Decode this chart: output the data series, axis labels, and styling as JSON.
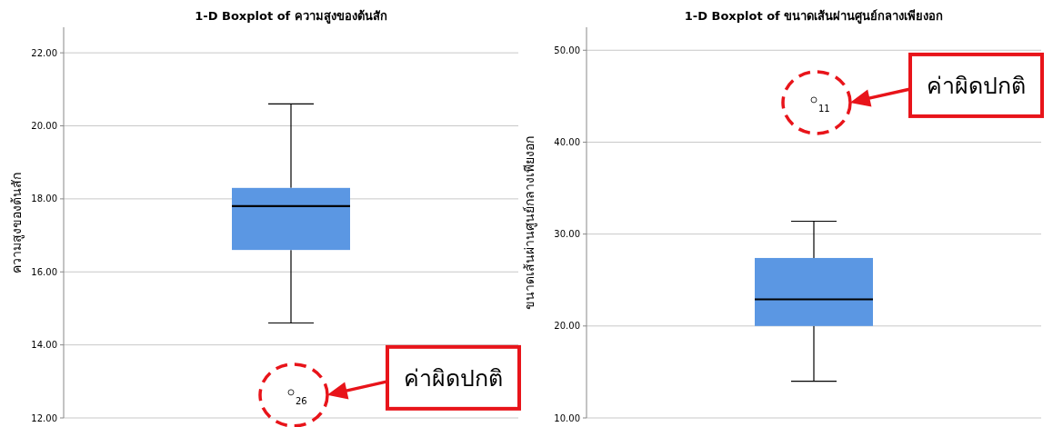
{
  "chart_data": [
    {
      "type": "box",
      "title": "1-D Boxplot of ความสูงของต้นสัก",
      "ylabel": "ความสูงของต้นสัก",
      "categories": [
        null
      ],
      "color": "#5b97e3",
      "boxes": [
        {
          "low": 14.6,
          "q1": 16.6,
          "median": 17.8,
          "q3": 18.3,
          "high": 20.6,
          "outliers": [
            12.7
          ]
        }
      ],
      "ylim": [
        12,
        22.7
      ],
      "yticks": [
        {
          "value": 12,
          "label": "12.00"
        },
        {
          "value": 14,
          "label": "14.00"
        },
        {
          "value": 16,
          "label": "16.00"
        },
        {
          "value": 18,
          "label": "18.00"
        },
        {
          "value": 20,
          "label": "20.00"
        },
        {
          "value": 22,
          "label": "22.00"
        }
      ],
      "grid": "y",
      "annotations": [
        "26",
        "ค่าผิดปกติ"
      ]
    },
    {
      "type": "box",
      "title": "1-D Boxplot of ขนาดเส้นผ่านศูนย์กลางเพียงอก",
      "ylabel": "ขนาดเส้นผ่านศูนย์กลางเพียงอก",
      "categories": [
        null
      ],
      "color": "#5b97e3",
      "boxes": [
        {
          "low": 14.0,
          "q1": 20.0,
          "median": 22.9,
          "q3": 27.4,
          "high": 31.4,
          "outliers": [
            44.6
          ]
        }
      ],
      "ylim": [
        10,
        52.5
      ],
      "yticks": [
        {
          "value": 10,
          "label": "10.00"
        },
        {
          "value": 20,
          "label": "20.00"
        },
        {
          "value": 30,
          "label": "30.00"
        },
        {
          "value": 40,
          "label": "40.00"
        },
        {
          "value": 50,
          "label": "50.00"
        }
      ],
      "grid": "y",
      "annotations": [
        "11",
        "ค่าผิดปกติ"
      ]
    }
  ]
}
